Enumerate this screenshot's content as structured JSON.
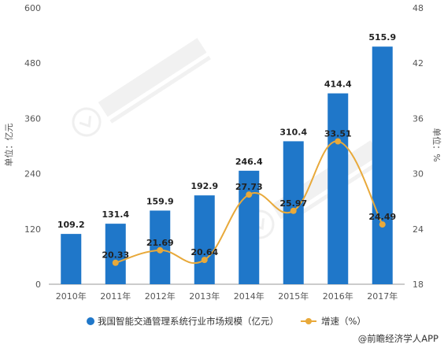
{
  "chart_data": {
    "type": "bar",
    "categories": [
      "2010年",
      "2011年",
      "2012年",
      "2013年",
      "2014年",
      "2015年",
      "2016年",
      "2017年"
    ],
    "series": [
      {
        "name": "我国智能交通管理系统行业市场规模（亿元）",
        "type": "bar",
        "axis": "left",
        "color": "#1f77c9",
        "values": [
          109.2,
          131.4,
          159.9,
          192.9,
          246.4,
          310.4,
          414.4,
          515.9
        ],
        "labels": [
          "109.2",
          "131.4",
          "159.9",
          "192.9",
          "246.4",
          "310.4",
          "414.4",
          "515.9"
        ]
      },
      {
        "name": "增速（%）",
        "type": "line",
        "axis": "right",
        "color": "#e8a93a",
        "values": [
          null,
          20.33,
          21.69,
          20.64,
          27.73,
          25.97,
          33.51,
          24.49
        ],
        "labels": [
          "",
          "20.33",
          "21.69",
          "20.64",
          "27.73",
          "25.97",
          "33.51",
          "24.49"
        ]
      }
    ],
    "ylabel": "单位：亿元",
    "y2label": "单位：%",
    "ylim": [
      0,
      600
    ],
    "y2lim": [
      18,
      48
    ],
    "yticks": [
      "0",
      "120",
      "240",
      "360",
      "480",
      "600"
    ],
    "y2ticks": [
      "18",
      "24",
      "30",
      "36",
      "42",
      "48"
    ],
    "grid": false,
    "legend_position": "bottom"
  },
  "source": "@前瞻经济学人APP"
}
